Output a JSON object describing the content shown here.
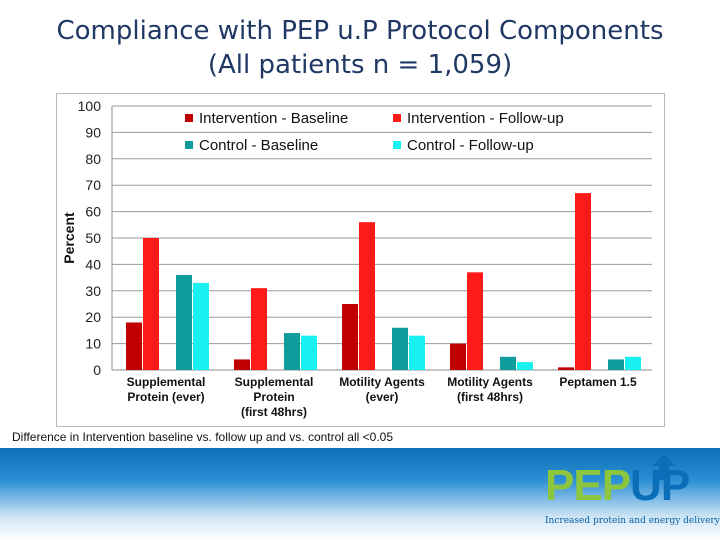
{
  "title": {
    "line1": "Compliance with PEP u.P Protocol Components",
    "line2": "(All patients n = 1,059)"
  },
  "footnote": "Difference in Intervention baseline vs. follow up and  vs. control all <0.05",
  "logo": {
    "pep": "PEP",
    "up": "UP",
    "tagline": "Increased protein and energy delivery"
  },
  "chart_data": {
    "type": "bar",
    "title": "Compliance with PEP u.P Protocol Components (All patients n = 1,059)",
    "ylabel": "Percent",
    "xlabel": "",
    "ylim": [
      0,
      100
    ],
    "yticks": [
      0,
      10,
      20,
      30,
      40,
      50,
      60,
      70,
      80,
      90,
      100
    ],
    "grid": true,
    "legend_position": "top",
    "categories": [
      [
        "Supplemental",
        "Protein (ever)"
      ],
      [
        "Supplemental",
        "Protein",
        "(first 48hrs)"
      ],
      [
        "Motility Agents",
        "(ever)"
      ],
      [
        "Motility Agents",
        "(first 48hrs)"
      ],
      [
        "Peptamen 1.5"
      ]
    ],
    "series": [
      {
        "name": "Intervention - Baseline",
        "color": "#c00000",
        "values": [
          18,
          4,
          25,
          10,
          1
        ]
      },
      {
        "name": "Intervention - Follow-up",
        "color": "#ff1a1a",
        "values": [
          50,
          31,
          56,
          37,
          67
        ]
      },
      {
        "name": "Control - Baseline",
        "color": "#119c9c",
        "values": [
          36,
          14,
          16,
          5,
          4
        ]
      },
      {
        "name": "Control - Follow-up",
        "color": "#19f0f0",
        "values": [
          33,
          13,
          13,
          3,
          5
        ]
      }
    ]
  }
}
